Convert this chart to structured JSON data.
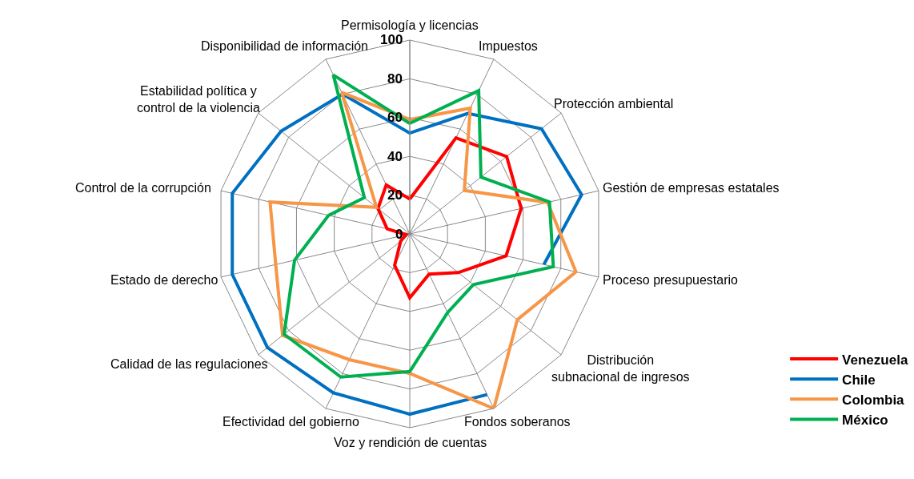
{
  "chart_data": {
    "type": "radar",
    "categories": [
      "Permisología y licencias",
      "Impuestos",
      "Protección ambiental",
      "Gestión de empresas estatales",
      "Proceso presupuestario",
      "Distribución subnacional de ingresos",
      "Fondos soberanos",
      "Voz y rendición de cuentas",
      "Efectividad del gobierno",
      "Calidad de las regulaciones",
      "Estado de derecho",
      "Control de la corrupción",
      "Estabilidad política y control de la violencia",
      "Disponibilidad de información"
    ],
    "series": [
      {
        "name": "Venezuela",
        "color": "#ff0000",
        "values": [
          18,
          55,
          64,
          59,
          51,
          32,
          23,
          33,
          18,
          6,
          2,
          12,
          21,
          28
        ]
      },
      {
        "name": "Chile",
        "color": "#0070c0",
        "values": [
          52,
          69,
          87,
          91,
          71,
          null,
          92,
          93,
          91,
          94,
          94,
          94,
          85,
          80
        ]
      },
      {
        "name": "Colombia",
        "color": "#f79646",
        "values": [
          59,
          72,
          36,
          73,
          88,
          71,
          100,
          72,
          72,
          84,
          71,
          74,
          22,
          81
        ]
      },
      {
        "name": "México",
        "color": "#00b050",
        "values": [
          57,
          82,
          47,
          74,
          76,
          42,
          45,
          71,
          82,
          83,
          61,
          43,
          30,
          91
        ]
      }
    ],
    "ylim": [
      0,
      100
    ],
    "yticks": [
      0,
      20,
      40,
      60,
      80,
      100
    ],
    "grid": true,
    "legend": "bottom right",
    "marker": "none",
    "line_style": "solid"
  }
}
